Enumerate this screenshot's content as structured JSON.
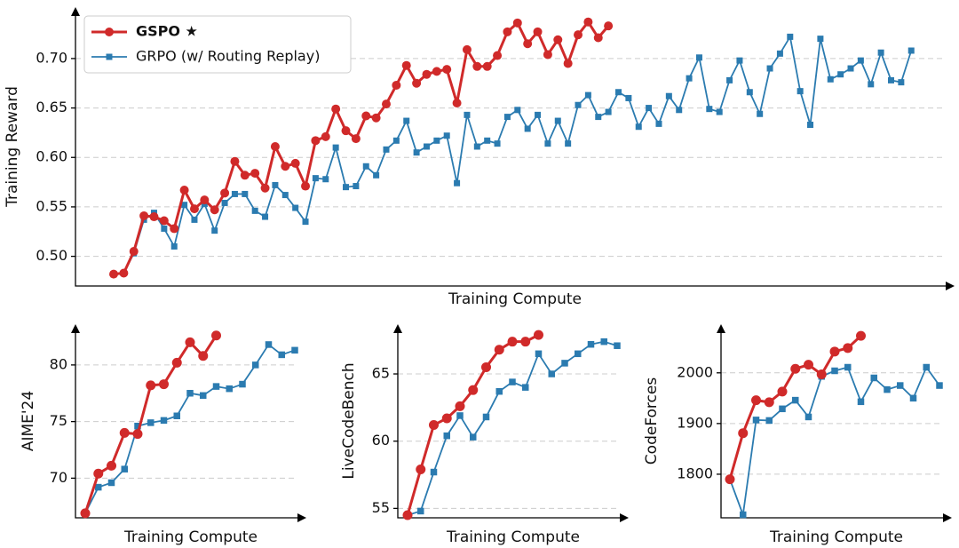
{
  "chart_data": [
    {
      "type": "line",
      "ylabel": "Training Reward",
      "xlabel": "Training Compute",
      "legend": "upper left",
      "grid": true,
      "ylim": [
        0.47,
        0.752
      ],
      "yticks": [
        {
          "value": 0.5,
          "label": "0.50"
        },
        0.55,
        {
          "value": 0.6,
          "label": "0.60"
        },
        0.65,
        {
          "value": 0.7,
          "label": "0.70"
        }
      ],
      "series": [
        {
          "name": "GSPO ★",
          "color": "#d02a2a",
          "values": [
            0.482,
            0.483,
            0.505,
            0.541,
            0.54,
            0.536,
            0.528,
            0.567,
            0.548,
            0.557,
            0.547,
            0.564,
            0.596,
            0.582,
            0.584,
            0.569,
            0.611,
            0.591,
            0.594,
            0.571,
            0.617,
            0.621,
            0.649,
            0.627,
            0.619,
            0.642,
            0.64,
            0.654,
            0.673,
            0.693,
            0.675,
            0.684,
            0.687,
            0.689,
            0.655,
            0.709,
            0.692,
            0.692,
            0.703,
            0.727,
            0.736,
            0.715,
            0.727,
            0.704,
            0.719,
            0.695,
            0.724,
            0.737,
            0.721,
            0.733,
            null,
            null,
            null,
            null,
            null,
            null,
            null,
            null,
            null,
            null,
            null,
            null,
            null,
            null,
            null,
            null,
            null,
            null,
            null,
            null,
            null,
            null,
            null,
            null,
            null,
            null,
            null,
            null,
            null,
            null
          ]
        },
        {
          "name": "GRPO (w/ Routing Replay)",
          "color": "#2b7bb0",
          "values": [
            null,
            0.483,
            0.503,
            0.537,
            0.544,
            0.528,
            0.51,
            0.552,
            0.537,
            0.553,
            0.526,
            0.554,
            0.563,
            0.563,
            0.546,
            0.54,
            0.572,
            0.562,
            0.549,
            0.535,
            0.579,
            0.578,
            0.61,
            0.57,
            0.571,
            0.591,
            0.582,
            0.608,
            0.617,
            0.637,
            0.605,
            0.611,
            0.617,
            0.622,
            0.574,
            0.643,
            0.611,
            0.617,
            0.614,
            0.641,
            0.648,
            0.629,
            0.643,
            0.614,
            0.637,
            0.614,
            0.653,
            0.663,
            0.641,
            0.646,
            0.666,
            0.66,
            0.631,
            0.65,
            0.634,
            0.662,
            0.648,
            0.68,
            0.701,
            0.649,
            0.646,
            0.678,
            0.698,
            0.666,
            0.644,
            0.69,
            0.705,
            0.722,
            0.667,
            0.633,
            0.72,
            0.679,
            0.684,
            0.69,
            0.698,
            0.674,
            0.706,
            0.678,
            0.676,
            0.708
          ]
        }
      ]
    },
    {
      "type": "line",
      "ylabel": "AIME'24",
      "xlabel": "Training Compute",
      "grid": true,
      "ylim": [
        66.5,
        83.6
      ],
      "yticks": [
        70,
        75,
        80
      ],
      "series": [
        {
          "name": "GSPO ★",
          "color": "#d02a2a",
          "values": [
            66.9,
            70.4,
            71.1,
            74.0,
            73.9,
            78.2,
            78.3,
            80.2,
            82.0,
            80.8,
            82.6,
            null,
            null,
            null,
            null,
            null,
            null
          ]
        },
        {
          "name": "GRPO (w/ Routing Replay)",
          "color": "#2b7bb0",
          "values": [
            66.9,
            69.2,
            69.6,
            70.8,
            74.6,
            74.9,
            75.1,
            75.5,
            77.5,
            77.3,
            78.1,
            77.9,
            78.3,
            80.0,
            81.8,
            80.9,
            81.3
          ]
        }
      ]
    },
    {
      "type": "line",
      "ylabel": "LiveCodeBench",
      "xlabel": "Training Compute",
      "grid": true,
      "ylim": [
        54.3,
        68.7
      ],
      "yticks": [
        55,
        60,
        65
      ],
      "series": [
        {
          "name": "GSPO ★",
          "color": "#d02a2a",
          "values": [
            54.5,
            57.9,
            61.2,
            61.7,
            62.6,
            63.8,
            65.5,
            66.8,
            67.4,
            67.4,
            67.9,
            null,
            null,
            null,
            null,
            null,
            null
          ]
        },
        {
          "name": "GRPO (w/ Routing Replay)",
          "color": "#2b7bb0",
          "values": [
            54.5,
            54.8,
            57.7,
            60.4,
            61.9,
            60.3,
            61.8,
            63.7,
            64.4,
            64.0,
            66.5,
            65.0,
            65.8,
            66.5,
            67.2,
            67.4,
            67.1
          ]
        }
      ]
    },
    {
      "type": "line",
      "ylabel": "CodeForces",
      "xlabel": "Training Compute",
      "grid": true,
      "ylim": [
        1714,
        2096
      ],
      "yticks": [
        1800,
        1900,
        2000
      ],
      "series": [
        {
          "name": "GSPO ★",
          "color": "#d02a2a",
          "values": [
            1790,
            1881,
            1946,
            1942,
            1963,
            2008,
            2016,
            1997,
            2042,
            2049,
            2073,
            null,
            null,
            null,
            null,
            null,
            null
          ]
        },
        {
          "name": "GRPO (w/ Routing Replay)",
          "color": "#2b7bb0",
          "values": [
            1790,
            1720,
            1907,
            1906,
            1929,
            1946,
            1913,
            1993,
            2004,
            2011,
            1943,
            1990,
            1967,
            1975,
            1950,
            2011,
            1975
          ]
        }
      ]
    }
  ]
}
